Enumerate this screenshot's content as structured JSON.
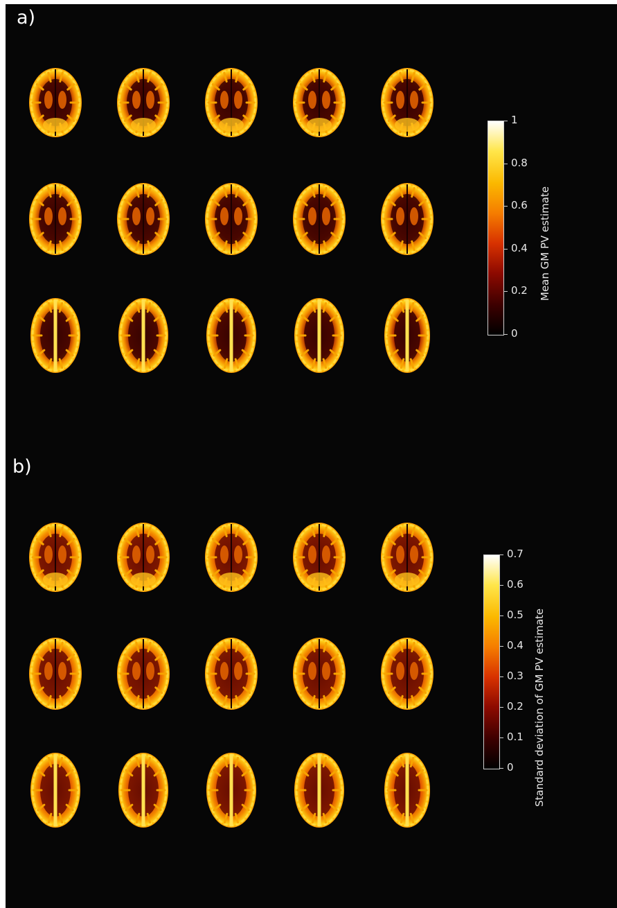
{
  "panels": [
    {
      "id": "a",
      "label": "a)",
      "colorbar": {
        "title": "Mean GM PV estimate",
        "ticks": [
          "0",
          "0.2",
          "0.4",
          "0.6",
          "0.8",
          "1"
        ],
        "min": 0,
        "max": 1
      },
      "rows": 3,
      "cols": 5,
      "slice_count": 15
    },
    {
      "id": "b",
      "label": "b)",
      "colorbar": {
        "title": "Standard deviation of GM PV estimate",
        "ticks": [
          "0",
          "0.1",
          "0.2",
          "0.3",
          "0.4",
          "0.5",
          "0.6",
          "0.7"
        ],
        "min": 0,
        "max": 0.7
      },
      "rows": 3,
      "cols": 5,
      "slice_count": 15
    }
  ],
  "colors": {
    "background": "#060606",
    "colormap": [
      "#000000",
      "#3d0000",
      "#8e0a00",
      "#d83200",
      "#f57d00",
      "#fbb800",
      "#ffe64a",
      "#ffffff"
    ]
  }
}
